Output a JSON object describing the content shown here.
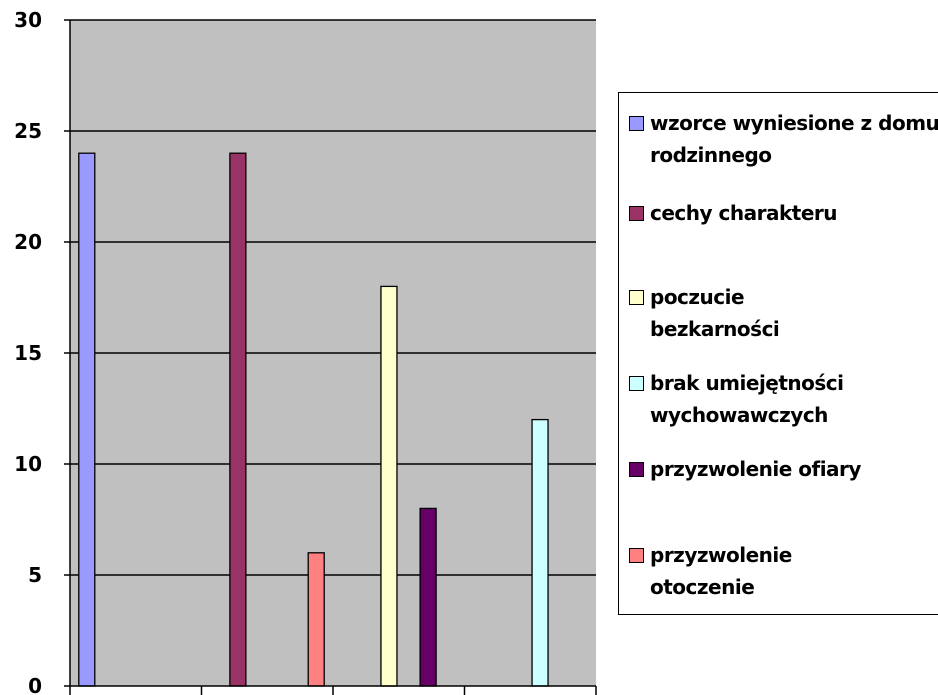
{
  "chart_data": {
    "type": "bar",
    "title": "",
    "xlabel": "",
    "ylabel": "",
    "ylim": [
      0,
      30
    ],
    "yticks": [
      "0",
      "5",
      "10",
      "15",
      "20",
      "25",
      "30"
    ],
    "grid": true,
    "legend_position": "right",
    "plot_background": "#c0c0c0",
    "categories": [
      "",
      "",
      "",
      ""
    ],
    "series": [
      {
        "name": "wzorce wyniesione z domu rodzinnego",
        "color": "#9999ff",
        "values": [
          24,
          null,
          null,
          null
        ]
      },
      {
        "name": "cechy charakteru",
        "color": "#993366",
        "values": [
          null,
          24,
          null,
          null
        ]
      },
      {
        "name": "poczucie bezkarności",
        "color": "#ffffcc",
        "values": [
          null,
          null,
          18,
          null
        ]
      },
      {
        "name": "brak umiejętności wychowawczych",
        "color": "#ccffff",
        "values": [
          null,
          null,
          null,
          12
        ]
      },
      {
        "name": "przyzwolenie ofiary",
        "color": "#660066",
        "values": [
          null,
          null,
          8,
          null
        ]
      },
      {
        "name": "przyzwolenie otoczenie",
        "color": "#ff8080",
        "values": [
          null,
          6,
          null,
          null
        ]
      }
    ]
  }
}
